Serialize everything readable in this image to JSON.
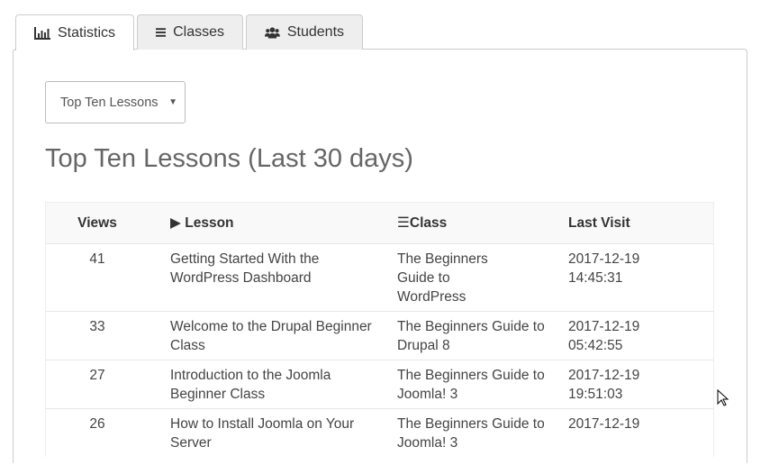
{
  "tabs": [
    {
      "label": "Statistics",
      "icon": "bar-chart-icon"
    },
    {
      "label": "Classes",
      "icon": "list-icon"
    },
    {
      "label": "Students",
      "icon": "users-icon"
    }
  ],
  "select": {
    "value": "Top Ten Lessons"
  },
  "heading": "Top Ten Lessons (Last 30 days)",
  "table": {
    "headers": {
      "views": "Views",
      "lesson": "Lesson",
      "class": "Class",
      "last_visit": "Last Visit"
    },
    "rows": [
      {
        "views": "41",
        "lesson": "Getting Started With the WordPress Dashboard",
        "class": "The Beginners Guide to WordPress",
        "date": "2017-12-19",
        "time": "14:45:31"
      },
      {
        "views": "33",
        "lesson": "Welcome to the Drupal Beginner Class",
        "class": "The Beginners Guide to Drupal 8",
        "date": "2017-12-19",
        "time": "05:42:55"
      },
      {
        "views": "27",
        "lesson": "Introduction to the Joomla Beginner Class",
        "class": "The Beginners Guide to Joomla! 3",
        "date": "2017-12-19",
        "time": "19:51:03"
      },
      {
        "views": "26",
        "lesson": "How to Install Joomla on Your Server",
        "class": "The Beginners Guide to Joomla! 3",
        "date": "2017-12-19",
        "time": ""
      }
    ]
  }
}
